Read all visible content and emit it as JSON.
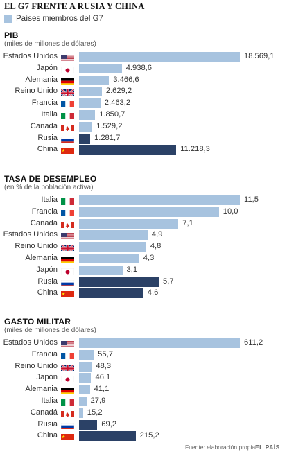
{
  "title": "EL G7 FRENTE A RUSIA Y CHINA",
  "legend": {
    "label": "Países miembros del G7",
    "color": "#a7c3df"
  },
  "colors": {
    "g7": "#a7c3df",
    "non_g7": "#2b4166"
  },
  "footer": {
    "source": "Fuente: elaboración propia.",
    "brand": "EL PAÍS"
  },
  "chart_data": [
    {
      "type": "bar",
      "orientation": "horizontal",
      "title": "PIB",
      "subtitle": "(miles de millones de dólares)",
      "xlim": [
        0,
        18569.1
      ],
      "categories": [
        "Estados Unidos",
        "Japón",
        "Alemania",
        "Reino Unido",
        "Francia",
        "Italia",
        "Canadá",
        "Rusia",
        "China"
      ],
      "flags": [
        "us-flag-icon",
        "japan-flag-icon",
        "germany-flag-icon",
        "uk-flag-icon",
        "france-flag-icon",
        "italy-flag-icon",
        "canada-flag-icon",
        "russia-flag-icon",
        "china-flag-icon"
      ],
      "values": [
        18569.1,
        4938.6,
        3466.6,
        2629.2,
        2463.2,
        1850.7,
        1529.2,
        1281.7,
        11218.3
      ],
      "labels": [
        "18.569,1",
        "4.938,6",
        "3.466,6",
        "2.629,2",
        "2.463,2",
        "1.850,7",
        "1.529,2",
        "1.281,7",
        "11.218,3"
      ],
      "g7": [
        true,
        true,
        true,
        true,
        true,
        true,
        true,
        false,
        false
      ]
    },
    {
      "type": "bar",
      "orientation": "horizontal",
      "title": "TASA DE DESEMPLEO",
      "subtitle": "(en % de la población activa)",
      "xlim": [
        0,
        11.5
      ],
      "categories": [
        "Italia",
        "Francia",
        "Canadá",
        "Estados Unidos",
        "Reino Unido",
        "Alemania",
        "Japón",
        "Rusia",
        "China"
      ],
      "flags": [
        "italy-flag-icon",
        "france-flag-icon",
        "canada-flag-icon",
        "us-flag-icon",
        "uk-flag-icon",
        "germany-flag-icon",
        "japan-flag-icon",
        "russia-flag-icon",
        "china-flag-icon"
      ],
      "values": [
        11.5,
        10.0,
        7.1,
        4.9,
        4.8,
        4.3,
        3.1,
        5.7,
        4.6
      ],
      "labels": [
        "11,5",
        "10,0",
        "7,1",
        "4,9",
        "4,8",
        "4,3",
        "3,1",
        "5,7",
        "4,6"
      ],
      "g7": [
        true,
        true,
        true,
        true,
        true,
        true,
        true,
        false,
        false
      ]
    },
    {
      "type": "bar",
      "orientation": "horizontal",
      "title": "GASTO MILITAR",
      "subtitle": "(miles de millones de dólares)",
      "xlim": [
        0,
        611.2
      ],
      "categories": [
        "Estados Unidos",
        "Francia",
        "Reino Unido",
        "Japón",
        "Alemania",
        "Italia",
        "Canadá",
        "Rusia",
        "China"
      ],
      "flags": [
        "us-flag-icon",
        "france-flag-icon",
        "uk-flag-icon",
        "japan-flag-icon",
        "germany-flag-icon",
        "italy-flag-icon",
        "canada-flag-icon",
        "russia-flag-icon",
        "china-flag-icon"
      ],
      "values": [
        611.2,
        55.7,
        48.3,
        46.1,
        41.1,
        27.9,
        15.2,
        69.2,
        215.2
      ],
      "labels": [
        "611,2",
        "55,7",
        "48,3",
        "46,1",
        "41,1",
        "27,9",
        "15,2",
        "69,2",
        "215,2"
      ],
      "g7": [
        true,
        true,
        true,
        true,
        true,
        true,
        true,
        false,
        false
      ]
    }
  ]
}
